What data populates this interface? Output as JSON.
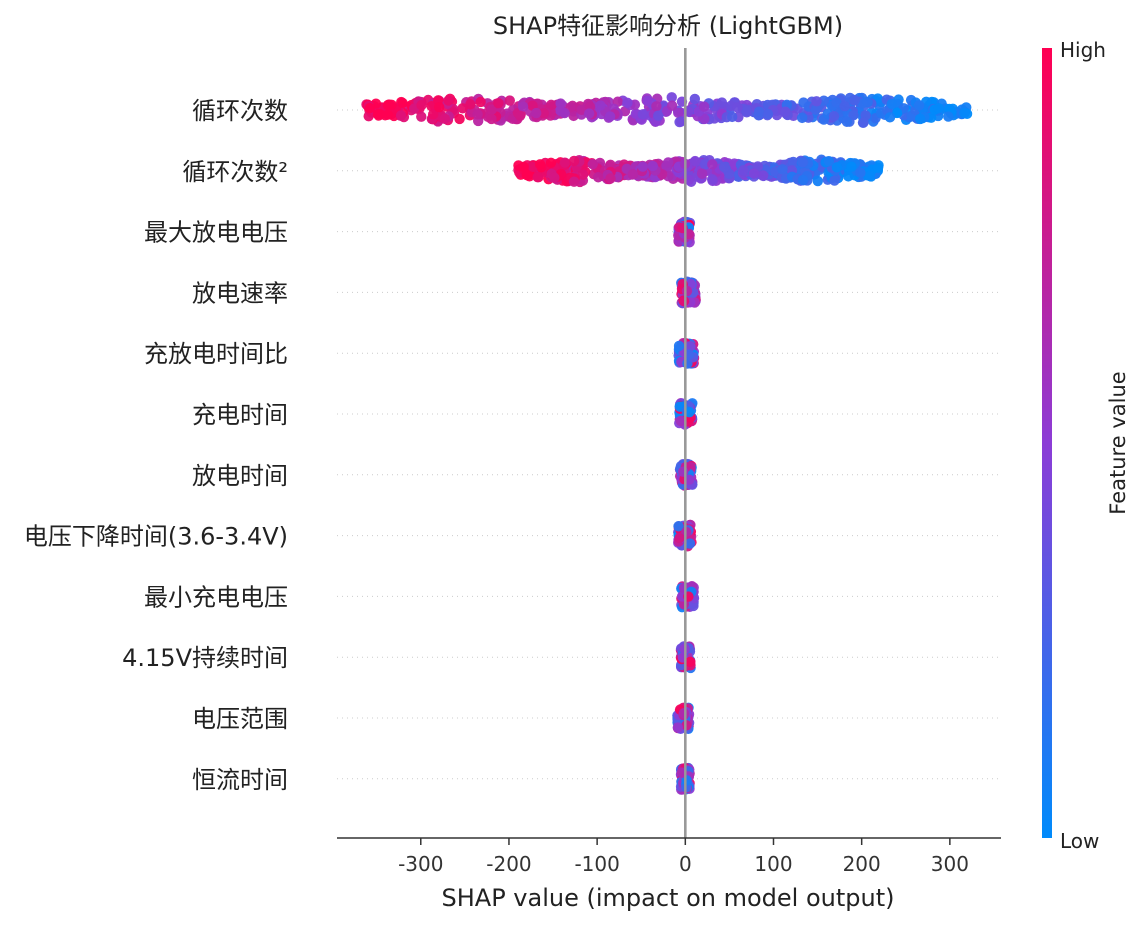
{
  "chart_data": {
    "type": "scatter",
    "title": "SHAP特征影响分析 (LightGBM)",
    "xlabel": "SHAP value (impact on model output)",
    "ylabel": "",
    "xlim": [
      -395,
      358
    ],
    "x_ticks": [
      -300,
      -200,
      -100,
      0,
      100,
      200,
      300
    ],
    "zero_line": 0,
    "grid": "dotted horizontal row guides",
    "colorbar": {
      "label": "Feature value",
      "high_label": "High",
      "low_label": "Low",
      "high_color": "#ff0052",
      "low_color": "#008bfb"
    },
    "features": [
      {
        "name": "循环次数",
        "range": [
          -362,
          320
        ],
        "spread": 0.85
      },
      {
        "name": "循环次数²",
        "range": [
          -190,
          220
        ],
        "spread": 0.75
      },
      {
        "name": "最大放电电压",
        "range": [
          -8,
          6
        ],
        "spread": 0.6
      },
      {
        "name": "放电速率",
        "range": [
          -6,
          12
        ],
        "spread": 0.6
      },
      {
        "name": "充放电时间比",
        "range": [
          -8,
          10
        ],
        "spread": 0.6
      },
      {
        "name": "充电时间",
        "range": [
          -7,
          8
        ],
        "spread": 0.6
      },
      {
        "name": "放电时间",
        "range": [
          -6,
          8
        ],
        "spread": 0.6
      },
      {
        "name": "电压下降时间(3.6-3.4V)",
        "range": [
          -8,
          7
        ],
        "spread": 0.6
      },
      {
        "name": "最小充电电压",
        "range": [
          -5,
          10
        ],
        "spread": 0.6
      },
      {
        "name": "4.15V持续时间",
        "range": [
          -5,
          6
        ],
        "spread": 0.6
      },
      {
        "name": "电压范围",
        "range": [
          -9,
          5
        ],
        "spread": 0.6
      },
      {
        "name": "恒流时间",
        "range": [
          -5,
          5
        ],
        "spread": 0.6
      }
    ]
  }
}
